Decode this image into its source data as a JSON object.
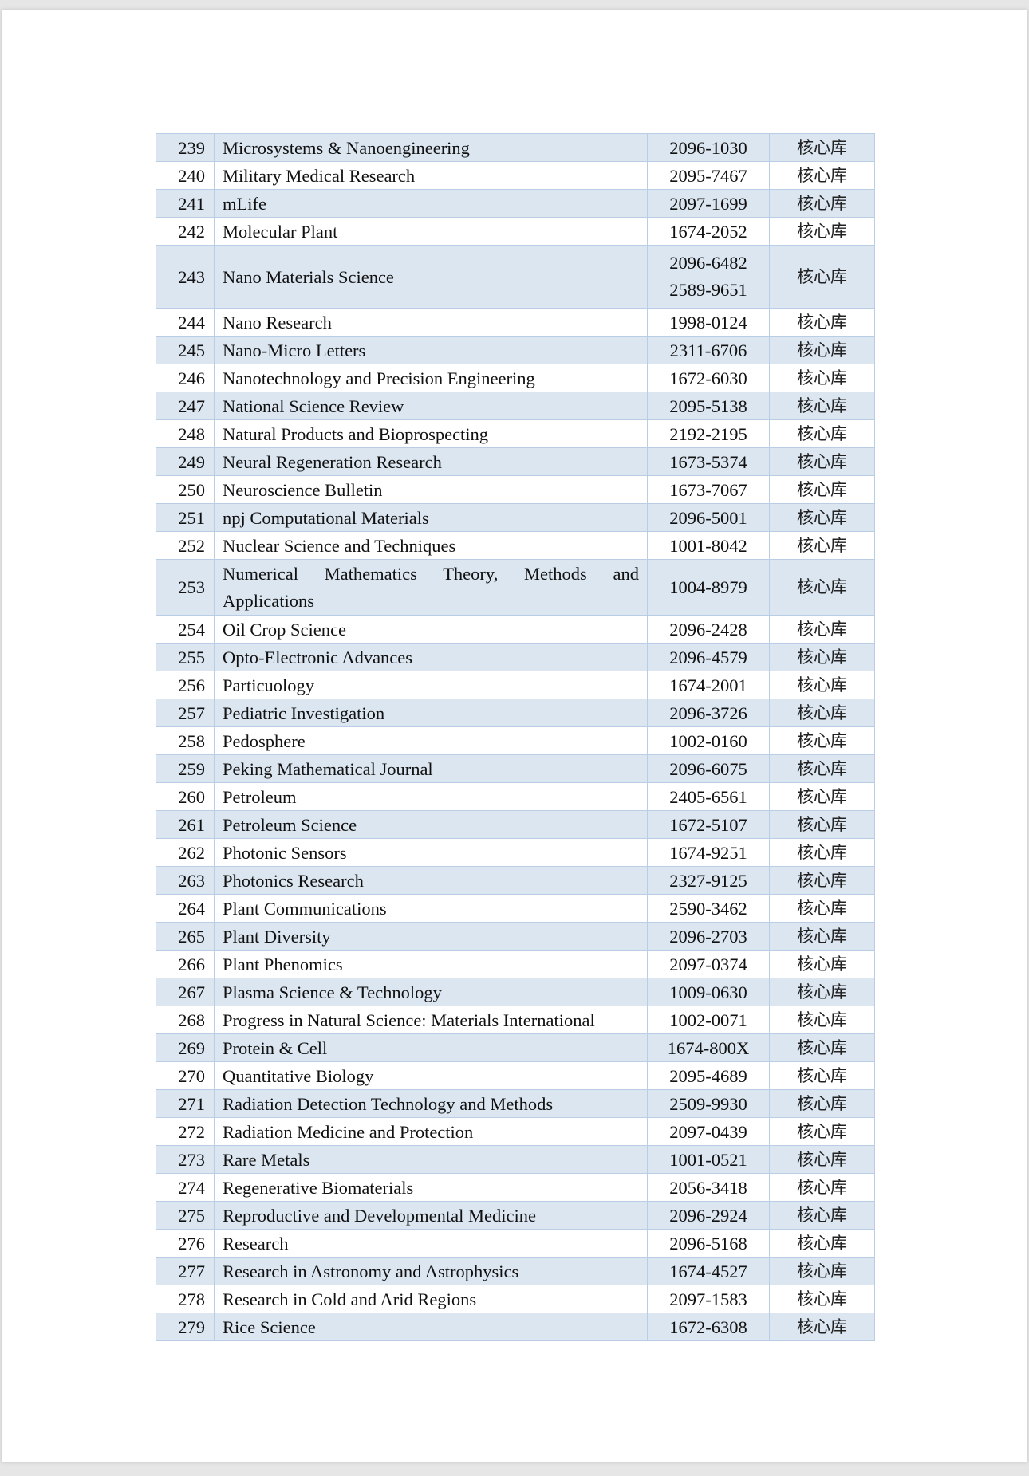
{
  "rows": [
    {
      "no": "239",
      "name": "Microsystems & Nanoengineering",
      "issn": [
        "2096-1030"
      ],
      "category": "核心库"
    },
    {
      "no": "240",
      "name": "Military Medical Research",
      "issn": [
        "2095-7467"
      ],
      "category": "核心库"
    },
    {
      "no": "241",
      "name": "mLife",
      "issn": [
        "2097-1699"
      ],
      "category": "核心库"
    },
    {
      "no": "242",
      "name": "Molecular Plant",
      "issn": [
        "1674-2052"
      ],
      "category": "核心库"
    },
    {
      "no": "243",
      "name": "Nano Materials Science",
      "issn": [
        "2096-6482",
        "2589-9651"
      ],
      "category": "核心库"
    },
    {
      "no": "244",
      "name": "Nano Research",
      "issn": [
        "1998-0124"
      ],
      "category": "核心库"
    },
    {
      "no": "245",
      "name": "Nano-Micro Letters",
      "issn": [
        "2311-6706"
      ],
      "category": "核心库"
    },
    {
      "no": "246",
      "name": "Nanotechnology and Precision Engineering",
      "issn": [
        "1672-6030"
      ],
      "category": "核心库"
    },
    {
      "no": "247",
      "name": "National Science Review",
      "issn": [
        "2095-5138"
      ],
      "category": "核心库"
    },
    {
      "no": "248",
      "name": "Natural Products and Bioprospecting",
      "issn": [
        "2192-2195"
      ],
      "category": "核心库"
    },
    {
      "no": "249",
      "name": "Neural Regeneration Research",
      "issn": [
        "1673-5374"
      ],
      "category": "核心库"
    },
    {
      "no": "250",
      "name": "Neuroscience Bulletin",
      "issn": [
        "1673-7067"
      ],
      "category": "核心库"
    },
    {
      "no": "251",
      "name": "npj Computational Materials",
      "issn": [
        "2096-5001"
      ],
      "category": "核心库"
    },
    {
      "no": "252",
      "name": "Nuclear Science and Techniques",
      "issn": [
        "1001-8042"
      ],
      "category": "核心库"
    },
    {
      "no": "253",
      "name": "Numerical Mathematics Theory, Methods and Applications",
      "issn": [
        "1004-8979"
      ],
      "category": "核心库"
    },
    {
      "no": "254",
      "name": "Oil Crop Science",
      "issn": [
        "2096-2428"
      ],
      "category": "核心库"
    },
    {
      "no": "255",
      "name": "Opto-Electronic Advances",
      "issn": [
        "2096-4579"
      ],
      "category": "核心库"
    },
    {
      "no": "256",
      "name": "Particuology",
      "issn": [
        "1674-2001"
      ],
      "category": "核心库"
    },
    {
      "no": "257",
      "name": "Pediatric Investigation",
      "issn": [
        "2096-3726"
      ],
      "category": "核心库"
    },
    {
      "no": "258",
      "name": "Pedosphere",
      "issn": [
        "1002-0160"
      ],
      "category": "核心库"
    },
    {
      "no": "259",
      "name": "Peking Mathematical Journal",
      "issn": [
        "2096-6075"
      ],
      "category": "核心库"
    },
    {
      "no": "260",
      "name": "Petroleum",
      "issn": [
        "2405-6561"
      ],
      "category": "核心库"
    },
    {
      "no": "261",
      "name": "Petroleum Science",
      "issn": [
        "1672-5107"
      ],
      "category": "核心库"
    },
    {
      "no": "262",
      "name": "Photonic Sensors",
      "issn": [
        "1674-9251"
      ],
      "category": "核心库"
    },
    {
      "no": "263",
      "name": "Photonics Research",
      "issn": [
        "2327-9125"
      ],
      "category": "核心库"
    },
    {
      "no": "264",
      "name": "Plant Communications",
      "issn": [
        "2590-3462"
      ],
      "category": "核心库"
    },
    {
      "no": "265",
      "name": "Plant Diversity",
      "issn": [
        "2096-2703"
      ],
      "category": "核心库"
    },
    {
      "no": "266",
      "name": "Plant Phenomics",
      "issn": [
        "2097-0374"
      ],
      "category": "核心库"
    },
    {
      "no": "267",
      "name": "Plasma Science & Technology",
      "issn": [
        "1009-0630"
      ],
      "category": "核心库"
    },
    {
      "no": "268",
      "name": "Progress in Natural Science: Materials International",
      "issn": [
        "1002-0071"
      ],
      "category": "核心库"
    },
    {
      "no": "269",
      "name": "Protein & Cell",
      "issn": [
        "1674-800X"
      ],
      "category": "核心库"
    },
    {
      "no": "270",
      "name": "Quantitative Biology",
      "issn": [
        "2095-4689"
      ],
      "category": "核心库"
    },
    {
      "no": "271",
      "name": "Radiation Detection Technology and Methods",
      "issn": [
        "2509-9930"
      ],
      "category": "核心库"
    },
    {
      "no": "272",
      "name": "Radiation Medicine and Protection",
      "issn": [
        "2097-0439"
      ],
      "category": "核心库"
    },
    {
      "no": "273",
      "name": "Rare Metals",
      "issn": [
        "1001-0521"
      ],
      "category": "核心库"
    },
    {
      "no": "274",
      "name": "Regenerative Biomaterials",
      "issn": [
        "2056-3418"
      ],
      "category": "核心库"
    },
    {
      "no": "275",
      "name": "Reproductive and Developmental Medicine",
      "issn": [
        "2096-2924"
      ],
      "category": "核心库"
    },
    {
      "no": "276",
      "name": "Research",
      "issn": [
        "2096-5168"
      ],
      "category": "核心库"
    },
    {
      "no": "277",
      "name": "Research in Astronomy and Astrophysics",
      "issn": [
        "1674-4527"
      ],
      "category": "核心库"
    },
    {
      "no": "278",
      "name": "Research in Cold and Arid Regions",
      "issn": [
        "2097-1583"
      ],
      "category": "核心库"
    },
    {
      "no": "279",
      "name": "Rice Science",
      "issn": [
        "1672-6308"
      ],
      "category": "核心库"
    }
  ],
  "colors": {
    "stripe": "#dce6f1",
    "border": "#b9cde5"
  }
}
